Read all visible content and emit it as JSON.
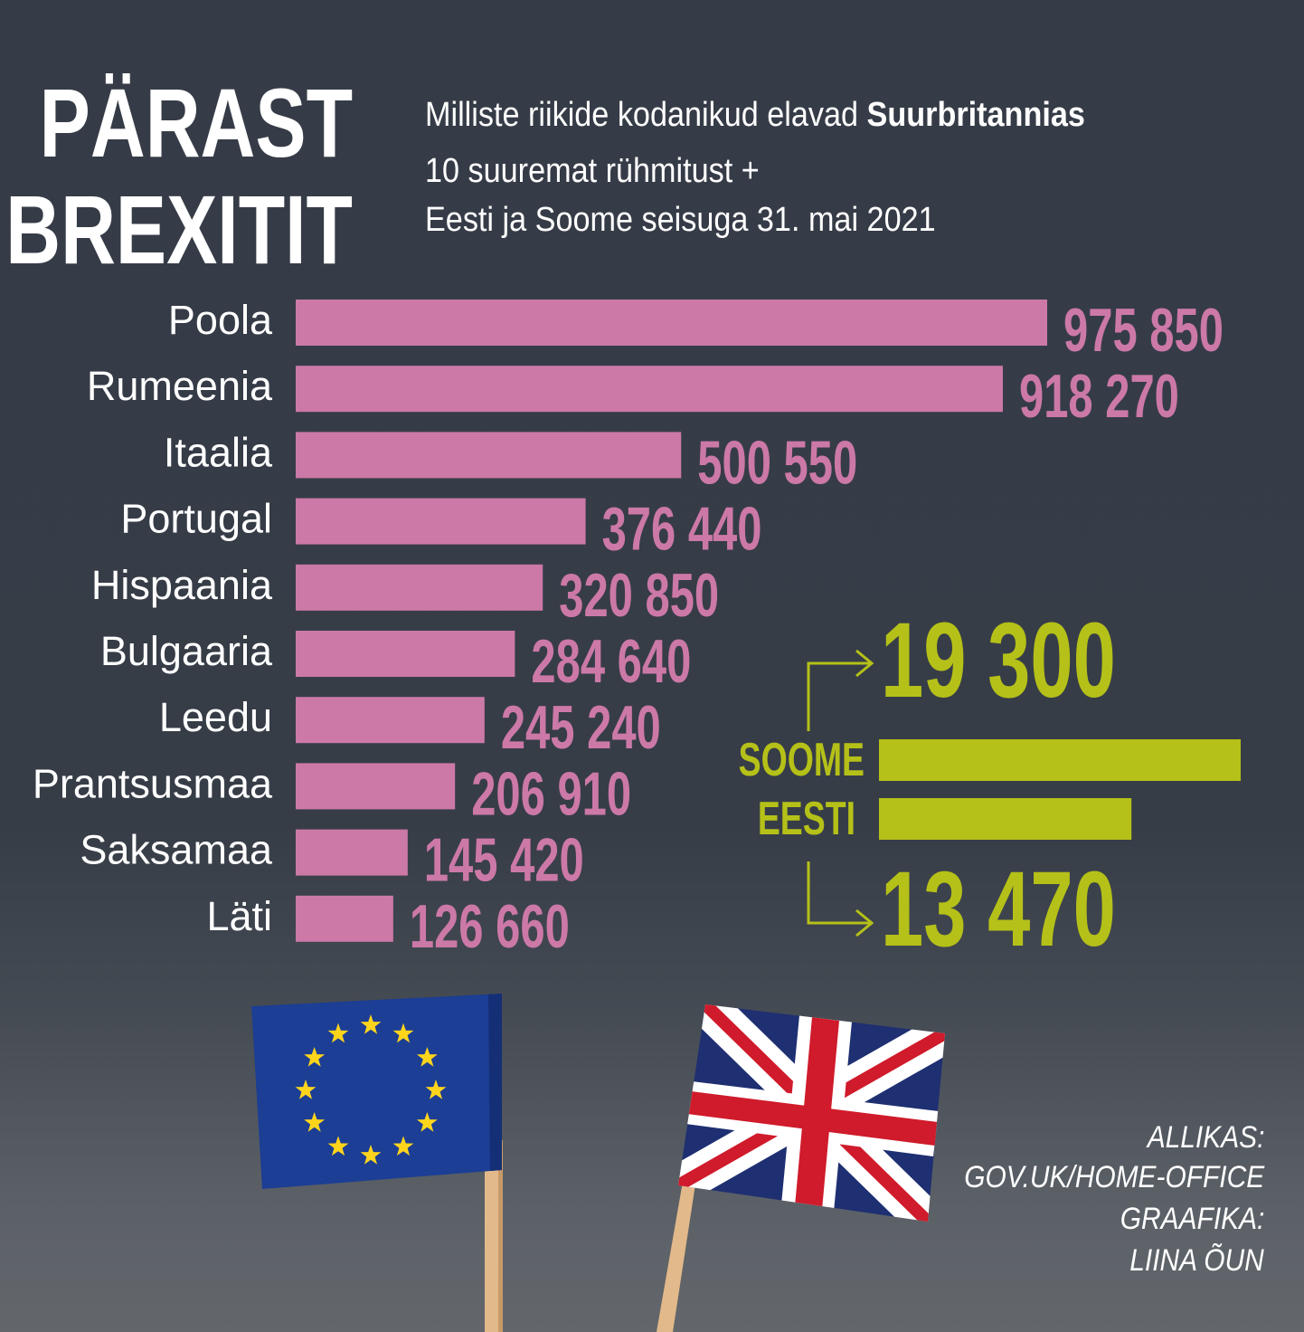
{
  "title": {
    "line1": "PÄRAST",
    "line2": "BREXITIT"
  },
  "subtitle": {
    "line1_regular": "Milliste riikide kodanikud elavad ",
    "line1_bold": "Suurbritannias",
    "line2": "10 suuremat rühmitust +",
    "line3": "Eesti ja Soome seisuga 31. mai 2021"
  },
  "colors": {
    "background": "#373d47",
    "bars": "#cc79a8",
    "highlight": "#b5c118",
    "text": "#ffffff"
  },
  "chart_data": [
    {
      "type": "bar",
      "orientation": "horizontal",
      "categories": [
        "Poola",
        "Rumeenia",
        "Itaalia",
        "Portugal",
        "Hispaania",
        "Bulgaaria",
        "Leedu",
        "Prantsusmaa",
        "Saksamaa",
        "Läti"
      ],
      "values": [
        975850,
        918270,
        500550,
        376440,
        320850,
        284640,
        245240,
        206910,
        145420,
        126660
      ],
      "value_labels": [
        "975 850",
        "918 270",
        "500 550",
        "376 440",
        "320 850",
        "284 640",
        "245 240",
        "206 910",
        "145 420",
        "126 660"
      ],
      "xlim": [
        0,
        975850
      ],
      "grid": false
    },
    {
      "type": "bar",
      "orientation": "horizontal",
      "categories": [
        "SOOME",
        "EESTI"
      ],
      "values": [
        19300,
        13470
      ],
      "value_labels": [
        "19 300",
        "13 470"
      ],
      "xlim": [
        0,
        19300
      ],
      "grid": false
    }
  ],
  "flags": [
    "eu-flag-icon",
    "union-jack-icon"
  ],
  "credits": {
    "source_label": "ALLIKAS:",
    "source": "GOV.UK/HOME-OFFICE",
    "graphics_label": "GRAAFIKA:",
    "author": "LIINA ÕUN"
  }
}
